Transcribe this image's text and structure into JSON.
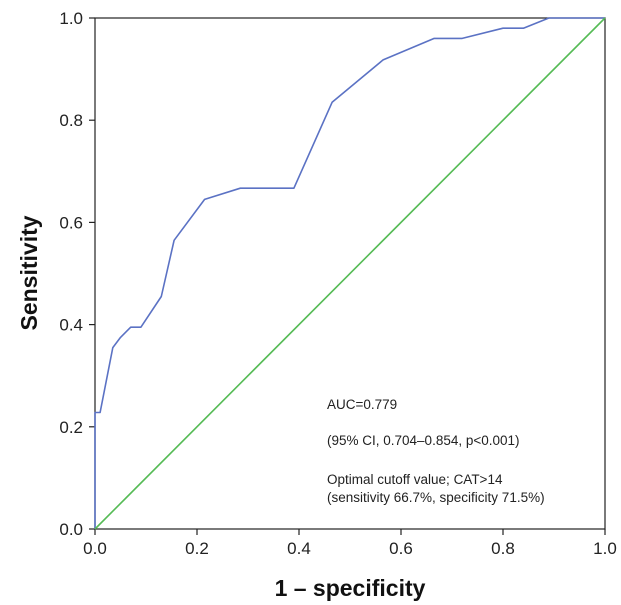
{
  "chart_data": {
    "type": "line",
    "title": "",
    "xlabel": "1 – specificity",
    "ylabel": "Sensitivity",
    "xlim": [
      0,
      1
    ],
    "ylim": [
      0,
      1
    ],
    "grid": false,
    "x_ticks": [
      "0.0",
      "0.2",
      "0.4",
      "0.6",
      "0.8",
      "1.0"
    ],
    "y_ticks": [
      "0.0",
      "0.2",
      "0.4",
      "0.6",
      "0.8",
      "1.0"
    ],
    "series": [
      {
        "name": "",
        "color": "#5b72c4",
        "x": [
          0,
          0,
          0.01,
          0.035,
          0.05,
          0.07,
          0.09,
          0.13,
          0.155,
          0.215,
          0.285,
          0.39,
          0.465,
          0.565,
          0.665,
          0.72,
          0.8,
          0.84,
          0.89,
          1.0
        ],
        "y": [
          0,
          0.228,
          0.228,
          0.355,
          0.375,
          0.395,
          0.395,
          0.455,
          0.565,
          0.645,
          0.667,
          0.667,
          0.835,
          0.918,
          0.96,
          0.96,
          0.98,
          0.98,
          1.0,
          1.0
        ]
      },
      {
        "name": "",
        "color": "#55bb55",
        "x": [
          0,
          1
        ],
        "y": [
          0,
          1
        ]
      }
    ],
    "annotations": [
      "AUC=0.779",
      "(95% CI, 0.704–0.854, p<0.001)",
      "Optimal cutoff value; CAT>14",
      "(sensitivity 66.7%, specificity 71.5%)"
    ]
  }
}
